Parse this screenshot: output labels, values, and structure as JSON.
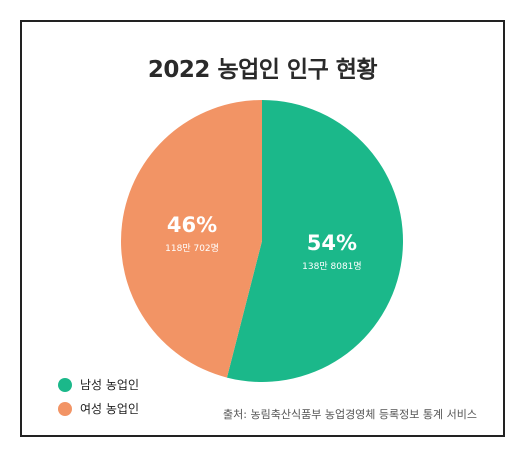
{
  "title": "2022 농업인 인구 현황",
  "source": "출처: 농림축산식품부 농업경영체 등록정보 통계 서비스",
  "chart_data": {
    "type": "pie",
    "title": "2022 농업인 인구 현황",
    "slices": [
      {
        "name": "남성 농업인",
        "value": 54,
        "percent_label": "54%",
        "count_label": "138만 8081명",
        "color": "#1bb88a"
      },
      {
        "name": "여성 농업인",
        "value": 46,
        "percent_label": "46%",
        "count_label": "118만 702명",
        "color": "#f29465"
      }
    ],
    "legend_position": "bottom-left"
  }
}
